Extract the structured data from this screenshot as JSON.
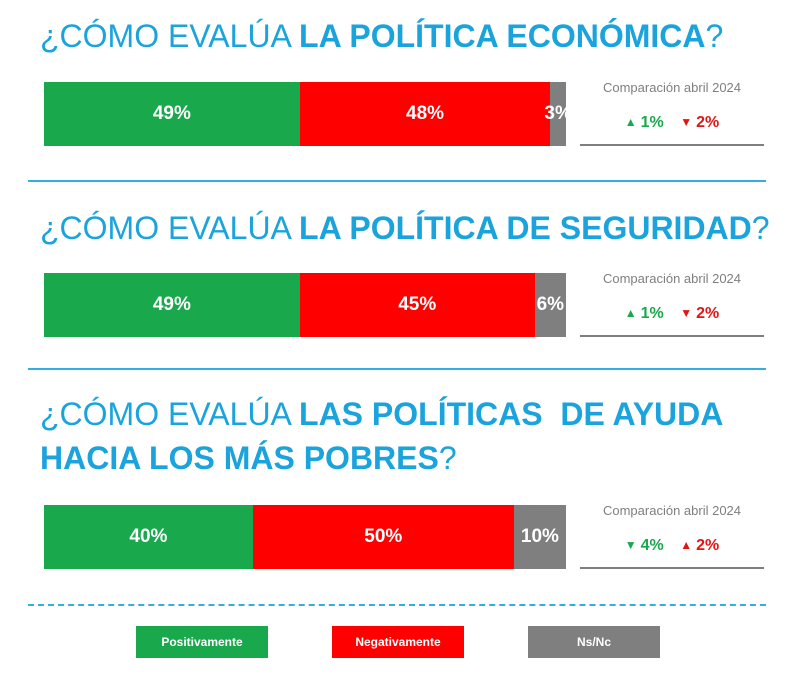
{
  "comparison_label": "Comparación abril 2024",
  "chart_data": {
    "type": "bar",
    "orientation": "horizontal-stacked-100",
    "categories": [
      "¿CÓMO EVALÚA LA POLÍTICA ECONÓMICA?",
      "¿CÓMO EVALÚA LA POLÍTICA DE SEGURIDAD?",
      "¿CÓMO EVALÚA LAS POLÍTICAS DE AYUDA HACIA LOS MÁS POBRES?"
    ],
    "series": [
      {
        "name": "Positivamente",
        "color": "#19a84b",
        "values": [
          49,
          49,
          40
        ],
        "labels": [
          "49%",
          "49%",
          "40%"
        ]
      },
      {
        "name": "Negativamente",
        "color": "#ff0000",
        "values": [
          48,
          45,
          50
        ],
        "labels": [
          "48%",
          "45%",
          "50%"
        ]
      },
      {
        "name": "Ns/Nc",
        "color": "#7f7f7f",
        "values": [
          3,
          6,
          10
        ],
        "labels": [
          "3%",
          "6%",
          "10%"
        ]
      }
    ],
    "legend_position": "bottom"
  },
  "questions": [
    {
      "title_prefix": "¿CÓMO EVALÚA ",
      "title_bold": "LA POLÍTICA ECONÓMICA",
      "title_suffix": "?",
      "comparison": [
        {
          "direction": "up",
          "symbol": "▲",
          "value": "1%",
          "color": "green"
        },
        {
          "direction": "down",
          "symbol": "▼",
          "value": "2%",
          "color": "red"
        }
      ]
    },
    {
      "title_prefix": "¿CÓMO EVALÚA ",
      "title_bold": "LA POLÍTICA DE SEGURIDAD",
      "title_suffix": "?",
      "comparison": [
        {
          "direction": "up",
          "symbol": "▲",
          "value": "1%",
          "color": "green"
        },
        {
          "direction": "down",
          "symbol": "▼",
          "value": "2%",
          "color": "red"
        }
      ]
    },
    {
      "title_prefix": "¿CÓMO EVALÚA ",
      "title_bold": "LAS POLÍTICAS  DE AYUDA",
      "title_bold_2": "HACIA LOS MÁS POBRES",
      "title_suffix": "?",
      "comparison": [
        {
          "direction": "down",
          "symbol": "▼",
          "value": "4%",
          "color": "green"
        },
        {
          "direction": "up",
          "symbol": "▲",
          "value": "2%",
          "color": "red"
        }
      ]
    }
  ],
  "legend": [
    {
      "label": "Positivamente",
      "color": "#19a84b"
    },
    {
      "label": "Negativamente",
      "color": "#ff0000"
    },
    {
      "label": "Ns/Nc",
      "color": "#7f7f7f"
    }
  ]
}
